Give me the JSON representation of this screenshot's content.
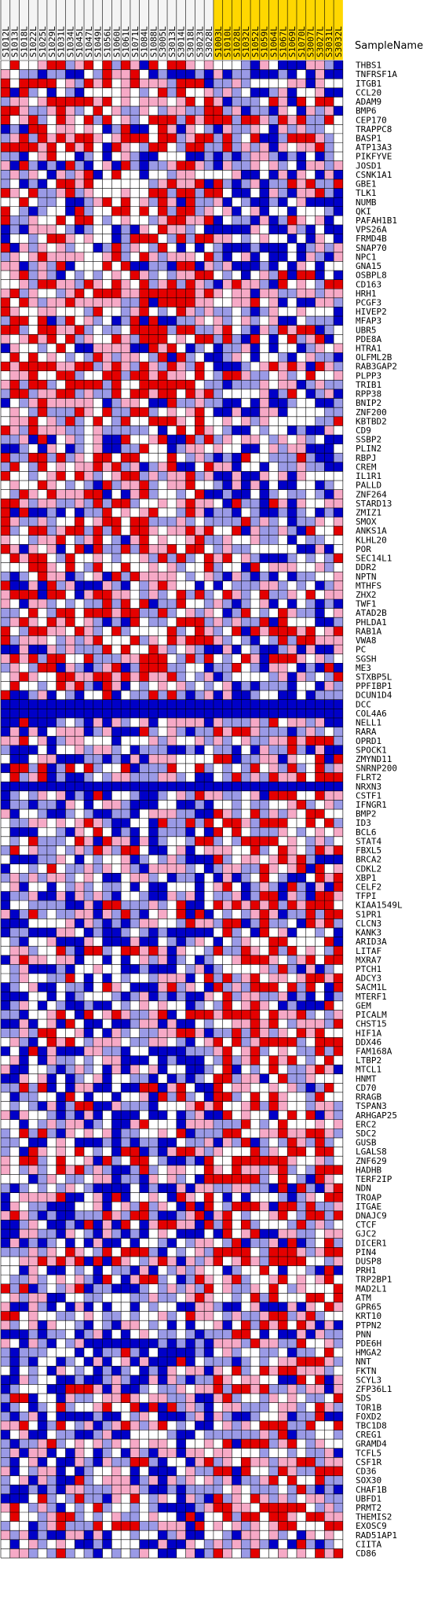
{
  "header": {
    "sample_name_label": "SampleName"
  },
  "chart_data": {
    "type": "heatmap",
    "colors": {
      "low": "#0000c8",
      "mid_low": "#9a9ae6",
      "mid": "#ffffff",
      "mid_high": "#f6a9c6",
      "high": "#e40000",
      "group_a_header": "#f4f4f4",
      "group_b_header": "#ffd700"
    },
    "columns": [
      "S1012L",
      "S1013L",
      "S1018L",
      "S1022L",
      "S1025L",
      "S1029L",
      "S1031L",
      "S1034L",
      "S1045L",
      "S1047L",
      "S1049L",
      "S1056L",
      "S1060L",
      "S1061L",
      "S1071L",
      "S1084L",
      "S1088L",
      "S3005L",
      "S3013L",
      "S3014L",
      "S3018L",
      "S3023L",
      "S3028L",
      "S1003L",
      "S1010L",
      "S1028L",
      "S1032L",
      "S1052L",
      "S1059L",
      "S1064L",
      "S1067L",
      "S1069L",
      "S1070L",
      "S3007L",
      "S3027L",
      "S3031L",
      "S3032L"
    ],
    "column_groups": [
      {
        "label": "",
        "start": 0,
        "end": 22,
        "color": "group_a_header"
      },
      {
        "label": "",
        "start": 23,
        "end": 36,
        "color": "group_b_header"
      }
    ],
    "rows": [
      "THBS1",
      "TNFRSF1A",
      "ITGB1",
      "CCL20",
      "ADAM9",
      "BMP6",
      "CEP170",
      "TRAPPC8",
      "BASP1",
      "ATP13A3",
      "PIKFYVE",
      "JOSD1",
      "CSNK1A1",
      "GBE1",
      "TLK1",
      "NUMB",
      "QKI",
      "PAFAH1B1",
      "VPS26A",
      "FRMD4B",
      "SNAP70",
      "NPC1",
      "GNA15",
      "OSBPL8",
      "CD163",
      "HRH1",
      "PCGF3",
      "HIVEP2",
      "MFAP3",
      "UBR5",
      "PDE8A",
      "HTRA1",
      "OLFML2B",
      "RAB3GAP2",
      "PLPP3",
      "TRIB1",
      "RPP38",
      "BNIP2",
      "ZNF200",
      "KBTBD2",
      "CD9",
      "SSBP2",
      "PLIN2",
      "RBPJ",
      "CREM",
      "IL1R1",
      "PALLD",
      "ZNF264",
      "STARD13",
      "ZMIZ1",
      "SMOX",
      "ANKS1A",
      "KLHL20",
      "POR",
      "SEC14L1",
      "DDR2",
      "NPTN",
      "MTHFS",
      "ZHX2",
      "TWF1",
      "ATAD2B",
      "PHLDA1",
      "RAB1A",
      "VWA8",
      "PC",
      "SGSH",
      "ME3",
      "STXBP5L",
      "PPFIBP1",
      "DCUN1D4",
      "DCC",
      "COL4A6",
      "NELL1",
      "RARA",
      "OPRD1",
      "SPOCK1",
      "ZMYND11",
      "SNRNP200",
      "FLRT2",
      "NRXN3",
      "CSTF1",
      "IFNGR1",
      "BMP2",
      "ID3",
      "BCL6",
      "STAT4",
      "FBXL5",
      "BRCA2",
      "CDKL2",
      "XBP1",
      "CELF2",
      "TFPI",
      "KIAA1549L",
      "S1PR1",
      "CLCN3",
      "KANK3",
      "ARID3A",
      "LITAF",
      "MXRA7",
      "PTCH1",
      "ADCY3",
      "SACM1L",
      "MTERF1",
      "GEM",
      "PICALM",
      "CHST15",
      "HIF1A",
      "DDX46",
      "FAM168A",
      "LTBP2",
      "MTCL1",
      "HNMT",
      "CD70",
      "RRAGB",
      "TSPAN3",
      "ARHGAP25",
      "ERC2",
      "SDC2",
      "GUSB",
      "LGALS8",
      "ZNF629",
      "HADHB",
      "TERF2IP",
      "NDN",
      "TROAP",
      "ITGAE",
      "DNAJC9",
      "CTCF",
      "GJC2",
      "DICER1",
      "PIN4",
      "DUSP8",
      "PRH1",
      "TRP2BP1",
      "MAD2L1",
      "ATM",
      "GPR65",
      "KRT10",
      "PTPN2",
      "PNN",
      "PDE6H",
      "HMGA2",
      "NNT",
      "FKTN",
      "SCYL3",
      "ZFP36L1",
      "SDS",
      "TOR1B",
      "FOXD2",
      "TBC1D8",
      "CREG1",
      "GRAMD4",
      "TCFL5",
      "CSF1R",
      "CD36",
      "SOX30",
      "CHAF1B",
      "UBFD1",
      "PRMT2",
      "THEMIS2",
      "EXOSC9",
      "RAD51AP1",
      "CIITA",
      "CD86"
    ],
    "value_range": [
      -2,
      2
    ],
    "values_note_seed": 11
  }
}
